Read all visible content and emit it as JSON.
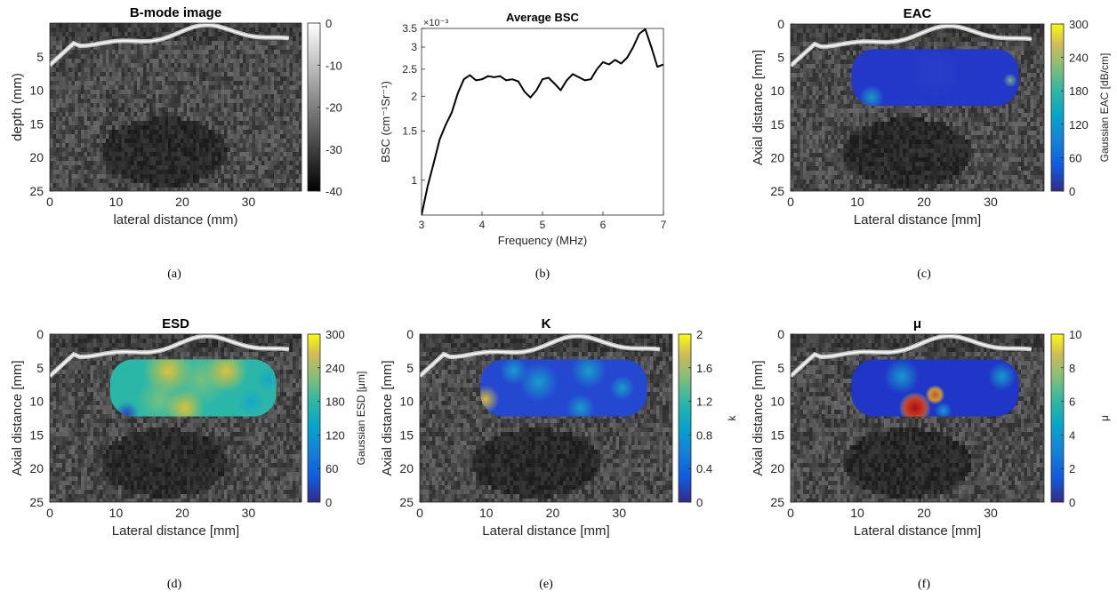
{
  "panels": [
    {
      "id": "a",
      "kind": "image",
      "title": "B-mode image",
      "caption": "(a)",
      "xlabel": "lateral distance (mm)",
      "ylabel": "depth (mm)",
      "xticks": [
        "0",
        "10",
        "20",
        "30"
      ],
      "yticks": [
        "5",
        "10",
        "15",
        "20",
        "25"
      ],
      "colorbar": {
        "ticks": [
          "0",
          "-10",
          "-20",
          "-30",
          "-40"
        ],
        "label": ""
      },
      "overlay": "none"
    },
    {
      "id": "c",
      "kind": "image",
      "title": "EAC",
      "caption": "(c)",
      "xlabel": "Lateral distance [mm]",
      "ylabel": "Axial distance [mm]",
      "xticks": [
        "0",
        "10",
        "20",
        "30"
      ],
      "yticks": [
        "0",
        "5",
        "10",
        "15",
        "20",
        "25"
      ],
      "colorbar": {
        "ticks": [
          "300",
          "240",
          "180",
          "120",
          "60",
          "0"
        ],
        "label": "Gaussian EAC [dB/cm]"
      },
      "overlay": "eac"
    },
    {
      "id": "d",
      "kind": "image",
      "title": "ESD",
      "caption": "(d)",
      "xlabel": "Lateral distance [mm]",
      "ylabel": "Axial distance [mm]",
      "xticks": [
        "0",
        "10",
        "20",
        "30"
      ],
      "yticks": [
        "0",
        "5",
        "10",
        "15",
        "20",
        "25"
      ],
      "colorbar": {
        "ticks": [
          "300",
          "240",
          "180",
          "120",
          "60",
          "0"
        ],
        "label": "Gaussian ESD [μm]"
      },
      "overlay": "esd"
    },
    {
      "id": "e",
      "kind": "image",
      "title": "K",
      "caption": "(e)",
      "xlabel": "Lateral distance [mm]",
      "ylabel": "Axial distance [mm]",
      "xticks": [
        "0",
        "10",
        "20",
        "30"
      ],
      "yticks": [
        "0",
        "5",
        "10",
        "15",
        "20",
        "25"
      ],
      "colorbar": {
        "ticks": [
          "2",
          "1.6",
          "1.2",
          "0.8",
          "0.4",
          "0"
        ],
        "label": "k"
      },
      "overlay": "k"
    },
    {
      "id": "f",
      "kind": "image",
      "title": "μ",
      "caption": "(f)",
      "xlabel": "Lateral distance [mm]",
      "ylabel": "Axial distance [mm]",
      "xticks": [
        "0",
        "10",
        "20",
        "30"
      ],
      "yticks": [
        "0",
        "5",
        "10",
        "15",
        "20",
        "25"
      ],
      "colorbar": {
        "ticks": [
          "10",
          "8",
          "6",
          "4",
          "2",
          "0"
        ],
        "label": "μ"
      },
      "overlay": "mu"
    }
  ],
  "chart_data": {
    "type": "line",
    "title": "Average BSC",
    "caption": "(b)",
    "xlabel": "Frequency (MHz)",
    "ylabel": "BSC (cm⁻¹Sr⁻¹)",
    "y_multiplier": "×10⁻³",
    "y_scale": "log",
    "xlim": [
      3,
      7
    ],
    "ylim": [
      0.75,
      3.5
    ],
    "xticks": [
      "3",
      "4",
      "5",
      "6",
      "7"
    ],
    "yticks": [
      {
        "value": 1,
        "label": "1"
      },
      {
        "value": 1.5,
        "label": "1.5"
      },
      {
        "value": 2,
        "label": "2"
      },
      {
        "value": 2.5,
        "label": "2.5"
      },
      {
        "value": 3,
        "label": "3"
      },
      {
        "value": 3.5,
        "label": "3.5"
      }
    ],
    "grid": false,
    "series": [
      {
        "color": "#000000",
        "x": [
          3.0,
          3.1,
          3.2,
          3.3,
          3.4,
          3.5,
          3.6,
          3.7,
          3.8,
          3.9,
          4.0,
          4.1,
          4.2,
          4.3,
          4.4,
          4.5,
          4.6,
          4.7,
          4.8,
          4.9,
          5.0,
          5.1,
          5.2,
          5.3,
          5.4,
          5.5,
          5.6,
          5.7,
          5.8,
          5.9,
          6.0,
          6.1,
          6.2,
          6.3,
          6.4,
          6.5,
          6.6,
          6.7,
          6.8,
          6.9,
          7.0
        ],
        "y": [
          0.75,
          0.95,
          1.15,
          1.4,
          1.58,
          1.75,
          2.05,
          2.3,
          2.38,
          2.28,
          2.3,
          2.36,
          2.34,
          2.36,
          2.28,
          2.3,
          2.26,
          2.08,
          1.98,
          2.1,
          2.3,
          2.33,
          2.22,
          2.1,
          2.28,
          2.4,
          2.34,
          2.28,
          2.3,
          2.5,
          2.65,
          2.6,
          2.7,
          2.62,
          2.75,
          3.0,
          3.35,
          3.48,
          3.0,
          2.55,
          2.6
        ]
      }
    ]
  }
}
